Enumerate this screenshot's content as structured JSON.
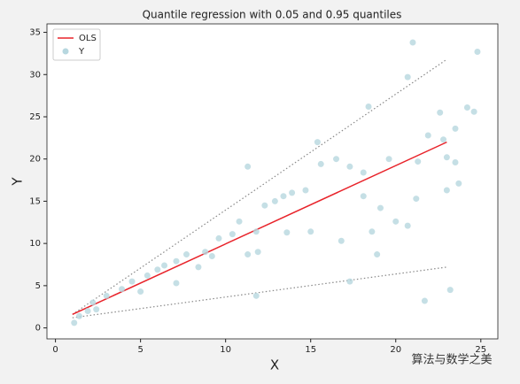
{
  "chart_data": {
    "type": "scatter",
    "title": "Quantile regression with 0.05 and 0.95 quantiles",
    "xlabel": "X",
    "ylabel": "Y",
    "annotation": "算法与数学之美",
    "xlim": [
      -0.5,
      26
    ],
    "ylim": [
      -1.3,
      36
    ],
    "xticks": [
      0,
      5,
      10,
      15,
      20,
      25
    ],
    "yticks": [
      0,
      5,
      10,
      15,
      20,
      25,
      30,
      35
    ],
    "legend": "upper left",
    "series": [
      {
        "name": "OLS",
        "type": "line",
        "color": "#e8232a",
        "x": [
          1,
          23
        ],
        "values": [
          1.6,
          22
        ]
      },
      {
        "name": "Y",
        "type": "scatter",
        "color": "#b7d7df",
        "x": [
          1.1,
          21,
          24.8,
          20.7,
          18.4,
          22.6,
          24.2,
          24.6,
          22.8,
          21.9,
          15.4,
          11.3,
          15.6,
          16.5,
          17.3,
          18.1,
          19.6,
          21.3,
          23,
          23.5,
          14.7,
          13.9,
          13.4,
          12.9,
          12.3,
          18.1,
          19.1,
          21.2,
          23,
          23.7,
          10.8,
          10.4,
          11.8,
          13.6,
          15,
          16.8,
          18.6,
          20,
          20.7,
          18.9,
          11.3,
          11.9,
          8.8,
          9.6,
          7.1,
          6.4,
          5.4,
          4.5,
          3.9,
          3,
          2.2,
          1.9,
          1.4,
          2.4,
          7.1,
          8.4,
          11.8,
          17.3,
          21.7,
          23.2,
          5,
          7.7,
          6,
          23.5,
          9.2
        ],
        "values": [
          0.6,
          33.8,
          32.7,
          29.7,
          26.2,
          25.5,
          26.1,
          25.6,
          22.3,
          22.8,
          22,
          19.1,
          19.4,
          20,
          19.1,
          18.4,
          20,
          19.7,
          20.2,
          19.6,
          16.3,
          16,
          15.6,
          15,
          14.5,
          15.6,
          14.2,
          15.3,
          16.3,
          17.1,
          12.6,
          11.1,
          11.4,
          11.3,
          11.4,
          10.3,
          11.4,
          12.6,
          12.1,
          8.7,
          8.7,
          9,
          9,
          10.6,
          7.9,
          7.4,
          6.2,
          5.5,
          4.6,
          3.8,
          3,
          2,
          1.4,
          2.2,
          5.3,
          7.2,
          3.8,
          5.5,
          3.2,
          4.5,
          4.3,
          8.7,
          6.9,
          23.6,
          8.5
        ]
      }
    ],
    "quantile_lines": [
      {
        "color": "#888888",
        "x": [
          1,
          23
        ],
        "values": [
          1.2,
          7.2
        ]
      },
      {
        "color": "#888888",
        "x": [
          1,
          23
        ],
        "values": [
          1.6,
          31.8
        ]
      }
    ]
  }
}
